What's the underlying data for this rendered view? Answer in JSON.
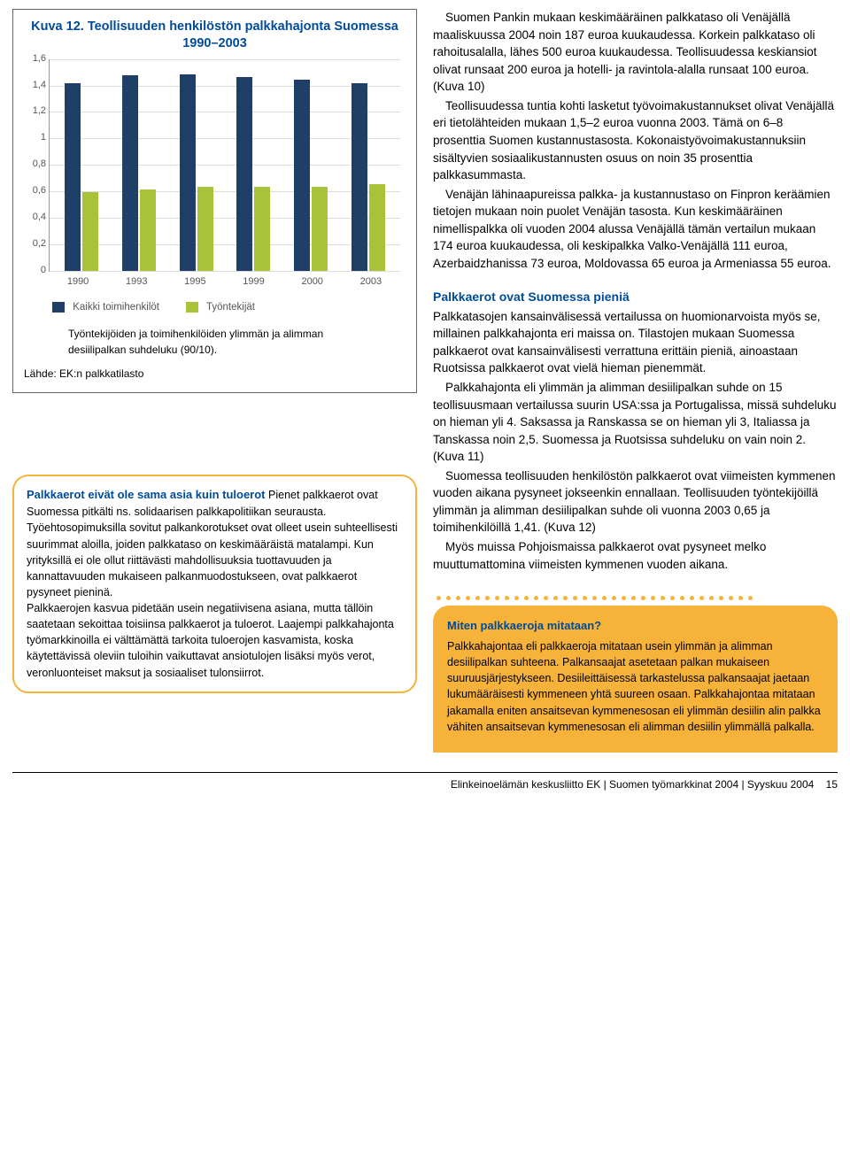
{
  "chart": {
    "title_l1": "Kuva 12.",
    "title_l2": "Teollisuuden henkilöstön palkkahajonta Suomessa 1990–2003",
    "type": "bar",
    "categories": [
      "1990",
      "1993",
      "1995",
      "1999",
      "2000",
      "2003"
    ],
    "series_a_label": "Kaikki toimihenkilöt",
    "series_b_label": "Työntekijät",
    "series_a": [
      1.41,
      1.47,
      1.48,
      1.46,
      1.44,
      1.41
    ],
    "series_b": [
      0.59,
      0.61,
      0.63,
      0.63,
      0.63,
      0.65
    ],
    "ymax": 1.6,
    "ytick_step": 0.2,
    "color_a": "#1f3f66",
    "color_b": "#a8c23a",
    "grid_color": "#dddddd",
    "note": "Työntekijöiden ja toimihenkilöiden ylimmän ja alimman desiilipalkan suhdeluku (90/10).",
    "source": "Lähde: EK:n palkkatilasto"
  },
  "callout1": {
    "title": "Palkkaerot eivät ole sama asia kuin tuloerot",
    "body": "Pienet palkkaerot ovat Suomessa pitkälti ns. solidaarisen palkkapolitiikan seurausta. Työehtosopimuksilla sovitut palkankorotukset ovat olleet usein suhteellisesti suurimmat aloilla, joiden palkkataso on keskimääräistä matalampi. Kun yrityksillä ei ole ollut riittävästi mahdollisuuksia tuottavuuden ja kannattavuuden mukaiseen palkanmuodostukseen, ovat palkkaerot pysyneet pieninä.\nPalkkaerojen kasvua pidetään usein negatiivisena asiana, mutta tällöin saatetaan sekoittaa toisiinsa palkkaerot ja tuloerot. Laajempi palkkahajonta työmarkkinoilla ei välttämättä tarkoita tuloerojen kasvamista, koska käytettävissä oleviin tuloihin vaikuttavat ansiotulojen lisäksi myös verot, veronluonteiset maksut ja sosiaaliset tulonsiirrot."
  },
  "rcol": {
    "p1": "Suomen Pankin mukaan keskimääräinen palkkataso oli Venäjällä maaliskuussa 2004 noin 187 euroa kuukaudessa. Korkein palkkataso oli rahoitusalalla, lähes 500 euroa kuukaudessa. Teollisuudessa keskiansiot olivat runsaat 200 euroa ja hotelli- ja ravintola-alalla runsaat 100 euroa. (Kuva 10)",
    "p2": "Teollisuudessa tuntia kohti lasketut työvoimakustannukset olivat Venäjällä eri tietolähteiden mukaan 1,5–2 euroa vuonna 2003. Tämä on 6–8 prosenttia Suomen kustannustasosta. Kokonaistyövoimakustannuksiin sisältyvien sosiaalikustannusten osuus on noin 35 prosenttia palkkasummasta.",
    "p3": "Venäjän lähinaapureissa palkka- ja kustannustaso on Finpron keräämien tietojen mukaan noin puolet Venäjän tasosta. Kun keskimääräinen nimellispalkka oli vuoden 2004 alussa Venäjällä tämän vertailun mukaan 174 euroa kuukaudessa, oli keskipalkka Valko-Venäjällä 111 euroa, Azerbaidzhanissa 73 euroa, Moldovassa 65 euroa ja Armeniassa 55 euroa.",
    "h1": "Palkkaerot ovat Suomessa pieniä",
    "p4": "Palkkatasojen kansainvälisessä vertailussa on huomionarvoista myös se, millainen palkkahajonta eri maissa on. Tilastojen mukaan Suomessa palkkaerot ovat kansainvälisesti verrattuna erittäin pieniä, ainoastaan Ruotsissa palkkaerot ovat vielä hieman pienemmät.",
    "p5": "Palkkahajonta eli ylimmän ja alimman desiilipalkan suhde on 15 teollisuusmaan vertailussa suurin USA:ssa ja Portugalissa, missä suhdeluku on hieman yli 4. Saksassa ja Ranskassa se on hieman yli 3, Italiassa ja Tanskassa noin 2,5. Suomessa ja Ruotsissa suhdeluku on vain noin 2. (Kuva 11)",
    "p6": "Suomessa teollisuuden henkilöstön palkkaerot ovat viimeisten kymmenen vuoden aikana pysyneet jokseenkin ennallaan. Teollisuuden työntekijöillä ylimmän ja alimman desiilipalkan suhde oli vuonna 2003 0,65 ja toimihenkilöillä 1,41. (Kuva 12)",
    "p7": "Myös muissa Pohjoismaissa palkkaerot ovat pysyneet melko muuttumattomina viimeisten kymmenen vuoden aikana."
  },
  "callout2": {
    "title": "Miten palkkaeroja mitataan?",
    "body": "Palkkahajontaa eli palkkaeroja mitataan usein ylimmän ja alimman desiilipalkan suhteena. Palkansaajat asetetaan palkan mukaiseen suuruusjärjestykseen. Desiileittäisessä tarkastelussa palkansaajat jaetaan lukumääräisesti kymmeneen yhtä suureen osaan. Palkkahajontaa mitataan jakamalla eniten ansaitsevan kymmenesosan eli ylimmän desiilin alin palkka vähiten ansaitsevan kymmenesosan eli alimman desiilin ylimmällä palkalla.",
    "dot_color": "#f7b23a",
    "dot_count": 33
  },
  "footer": {
    "text": "Elinkeinoelämän keskusliitto EK | Suomen työmarkkinat 2004 | Syyskuu 2004",
    "page": "15"
  }
}
